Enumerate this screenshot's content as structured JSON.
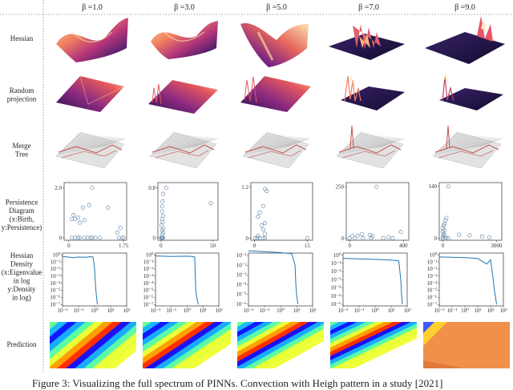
{
  "columns": [
    {
      "beta_label": "β =1.0"
    },
    {
      "beta_label": "β =3.0"
    },
    {
      "beta_label": "β =5.0"
    },
    {
      "beta_label": "β =7.0"
    },
    {
      "beta_label": "β =9.0"
    }
  ],
  "rows": [
    {
      "label": [
        "Hessian"
      ]
    },
    {
      "label": [
        "Random",
        "projection"
      ]
    },
    {
      "label": [
        "Merge",
        "Tree"
      ]
    },
    {
      "label": [
        "Persistence",
        "Diagram",
        "(x:Birth,",
        "y:Persistence)"
      ]
    },
    {
      "label": [
        "Hessian",
        "Density",
        "(x:Eigenvalue",
        "in log",
        "y:Density",
        "in log)"
      ]
    },
    {
      "label": [
        "Prediction"
      ]
    }
  ],
  "colors": {
    "surface_dark": "#1e1447",
    "surface_mid": "#8c2981",
    "surface_light": "#fd9f6c",
    "merge_tree_gray": "#9a9a9a",
    "merge_tree_red": "#c0504d",
    "scatter_marker": "#6b8fb0",
    "density_line": "#1f77b4"
  },
  "chart_data": [
    {
      "type": "scatter",
      "panel": "persistence-diagram",
      "beta": "β =1.0",
      "x_ticks": [
        "0",
        "1.75"
      ],
      "y_ticks": [
        "0",
        "2.0"
      ],
      "xlim": [
        -0.15,
        1.85
      ],
      "ylim": [
        -0.1,
        2.2
      ],
      "points": [
        [
          0.1,
          0
        ],
        [
          0.2,
          0
        ],
        [
          0.3,
          0
        ],
        [
          0.35,
          0
        ],
        [
          0.5,
          0
        ],
        [
          0.6,
          0
        ],
        [
          0.7,
          0
        ],
        [
          0.75,
          0
        ],
        [
          0.85,
          0
        ],
        [
          1.0,
          0
        ],
        [
          1.6,
          0
        ],
        [
          1.7,
          0
        ],
        [
          1.75,
          0
        ],
        [
          0.1,
          0.75
        ],
        [
          0.15,
          0.9
        ],
        [
          0.2,
          0.75
        ],
        [
          0.3,
          0.8
        ],
        [
          0.35,
          0.6
        ],
        [
          0.45,
          1.2
        ],
        [
          0.5,
          0.7
        ],
        [
          0.65,
          1.3
        ],
        [
          0.75,
          2.0
        ],
        [
          1.25,
          1.2
        ],
        [
          1.55,
          0.2
        ],
        [
          1.65,
          0.4
        ]
      ]
    },
    {
      "type": "scatter",
      "panel": "persistence-diagram",
      "beta": "β =3.0",
      "x_ticks": [
        "0",
        "50"
      ],
      "y_ticks": [
        "0",
        "0.8"
      ],
      "xlim": [
        -3,
        55
      ],
      "ylim": [
        -0.04,
        0.88
      ],
      "points": [
        [
          0,
          0
        ],
        [
          0.5,
          0
        ],
        [
          1,
          0
        ],
        [
          1.5,
          0
        ],
        [
          2,
          0
        ],
        [
          1,
          0.05
        ],
        [
          2,
          0.08
        ],
        [
          1,
          0.12
        ],
        [
          2,
          0.15
        ],
        [
          0.5,
          0.2
        ],
        [
          1.5,
          0.25
        ],
        [
          1,
          0.3
        ],
        [
          2,
          0.35
        ],
        [
          1,
          0.42
        ],
        [
          1,
          0.5
        ],
        [
          1.5,
          0.58
        ],
        [
          2,
          0.7
        ],
        [
          5,
          0.8
        ],
        [
          48,
          0.55
        ]
      ]
    },
    {
      "type": "scatter",
      "panel": "persistence-diagram",
      "beta": "β =5.0",
      "x_ticks": [
        "0",
        "15"
      ],
      "y_ticks": [
        "0",
        "1.2"
      ],
      "xlim": [
        -1,
        16.5
      ],
      "ylim": [
        -0.05,
        1.3
      ],
      "points": [
        [
          0.2,
          0
        ],
        [
          0.8,
          0
        ],
        [
          1.5,
          0
        ],
        [
          2.5,
          0
        ],
        [
          3,
          0
        ],
        [
          15,
          0
        ],
        [
          1,
          0.05
        ],
        [
          3,
          0.1
        ],
        [
          2.5,
          0.2
        ],
        [
          2,
          0.3
        ],
        [
          3,
          0.35
        ],
        [
          1,
          0.5
        ],
        [
          1.5,
          0.6
        ],
        [
          2.5,
          0.75
        ],
        [
          3,
          1.15
        ],
        [
          3.5,
          1.1
        ]
      ]
    },
    {
      "type": "scatter",
      "panel": "persistence-diagram",
      "beta": "β =7.0",
      "x_ticks": [
        "0",
        "400"
      ],
      "y_ticks": [
        "0",
        "250"
      ],
      "xlim": [
        -25,
        440
      ],
      "ylim": [
        -10,
        270
      ],
      "points": [
        [
          0,
          0
        ],
        [
          40,
          0
        ],
        [
          100,
          0
        ],
        [
          160,
          0
        ],
        [
          250,
          0
        ],
        [
          320,
          0
        ],
        [
          20,
          10
        ],
        [
          60,
          12
        ],
        [
          90,
          20
        ],
        [
          150,
          15
        ],
        [
          170,
          10
        ],
        [
          200,
          250
        ],
        [
          290,
          5
        ],
        [
          380,
          30
        ]
      ]
    },
    {
      "type": "scatter",
      "panel": "persistence-diagram",
      "beta": "β =9.0",
      "x_ticks": [
        "0",
        "3000"
      ],
      "y_ticks": [
        "0",
        "140"
      ],
      "xlim": [
        -200,
        3300
      ],
      "ylim": [
        -5,
        150
      ],
      "points": [
        [
          0,
          0
        ],
        [
          100,
          0
        ],
        [
          200,
          0
        ],
        [
          300,
          0
        ],
        [
          0,
          5
        ],
        [
          100,
          8
        ],
        [
          50,
          12
        ],
        [
          0,
          18
        ],
        [
          100,
          22
        ],
        [
          0,
          28
        ],
        [
          50,
          35
        ],
        [
          100,
          40
        ],
        [
          150,
          48
        ],
        [
          200,
          55
        ],
        [
          300,
          140
        ],
        [
          900,
          10
        ],
        [
          1500,
          8
        ],
        [
          2200,
          5
        ],
        [
          2600,
          3
        ]
      ]
    },
    {
      "type": "line",
      "panel": "hessian-density",
      "beta": "β =1.0",
      "yscale": "log",
      "xscale": "log",
      "y_ticks": [
        "10⁰",
        "10⁻¹",
        "10⁻²",
        "10⁻³",
        "10⁻⁴",
        "10⁻⁵",
        "10⁻⁶",
        "10⁻⁷"
      ],
      "x_ticks": [
        "10⁻²",
        "10⁻¹",
        "10⁰",
        "10¹",
        "10²"
      ],
      "points": [
        [
          0.01,
          0.6
        ],
        [
          0.05,
          0.4
        ],
        [
          0.1,
          0.5
        ],
        [
          0.3,
          0.45
        ],
        [
          0.5,
          0.55
        ],
        [
          0.8,
          0.5
        ],
        [
          1.0,
          0.01
        ],
        [
          1.2,
          1e-05
        ],
        [
          1.5,
          1e-07
        ]
      ]
    },
    {
      "type": "line",
      "panel": "hessian-density",
      "beta": "β =3.0",
      "yscale": "log",
      "xscale": "log",
      "y_ticks": [
        "10⁰",
        "10⁻¹",
        "10⁻²",
        "10⁻³",
        "10⁻⁴",
        "10⁻⁵",
        "10⁻⁶",
        "10⁻⁷"
      ],
      "x_ticks": [
        "10⁻²",
        "10⁻¹",
        "10⁰",
        "10¹",
        "10²"
      ],
      "points": [
        [
          0.01,
          0.7
        ],
        [
          0.1,
          0.6
        ],
        [
          1,
          0.65
        ],
        [
          2,
          0.6
        ],
        [
          3,
          0.5
        ],
        [
          3.5,
          1e-05
        ],
        [
          4,
          1e-06
        ],
        [
          5,
          1e-07
        ]
      ]
    },
    {
      "type": "line",
      "panel": "hessian-density",
      "beta": "β =5.0",
      "yscale": "log",
      "xscale": "log",
      "y_ticks": [
        "10⁻¹",
        "10⁻²",
        "10⁻³",
        "10⁻⁴",
        "10⁻⁵",
        "10⁻⁶"
      ],
      "x_ticks": [
        "10⁻²",
        "10⁻¹",
        "10⁰",
        "10¹",
        "10²"
      ],
      "points": [
        [
          0.01,
          0.3
        ],
        [
          0.1,
          0.25
        ],
        [
          1,
          0.2
        ],
        [
          5,
          0.15
        ],
        [
          8,
          0.01
        ],
        [
          9,
          0.0001
        ],
        [
          10,
          1e-05
        ],
        [
          12,
          1e-06
        ]
      ]
    },
    {
      "type": "line",
      "panel": "hessian-density",
      "beta": "β =7.0",
      "yscale": "log",
      "xscale": "log",
      "y_ticks": [
        "10⁰",
        "10⁻¹",
        "10⁻²",
        "10⁻³",
        "10⁻⁴",
        "10⁻⁵",
        "10⁻⁶"
      ],
      "x_ticks": [
        "10⁻²",
        "10⁻¹",
        "10⁰",
        "10¹",
        "10²"
      ],
      "points": [
        [
          0.01,
          0.4
        ],
        [
          0.1,
          0.35
        ],
        [
          1,
          0.3
        ],
        [
          10,
          0.25
        ],
        [
          30,
          0.2
        ],
        [
          40,
          0.001
        ],
        [
          45,
          1e-05
        ],
        [
          50,
          1e-06
        ]
      ]
    },
    {
      "type": "line",
      "panel": "hessian-density",
      "beta": "β =9.0",
      "yscale": "log",
      "xscale": "log",
      "y_ticks": [
        "10⁰",
        "10⁻¹",
        "10⁻²",
        "10⁻³",
        "10⁻⁴",
        "10⁻⁵",
        "10⁻⁶",
        "10⁻⁷"
      ],
      "x_ticks": [
        "10⁻²",
        "10⁻¹",
        "10⁰",
        "10¹",
        "10²",
        "10³"
      ],
      "points": [
        [
          0.01,
          0.5
        ],
        [
          0.1,
          0.45
        ],
        [
          1,
          0.4
        ],
        [
          10,
          0.3
        ],
        [
          50,
          0.05
        ],
        [
          100,
          0.2
        ],
        [
          150,
          0.001
        ],
        [
          200,
          1e-05
        ],
        [
          300,
          1e-07
        ]
      ]
    }
  ],
  "caption": "Figure 3: Visualizing the full spectrum of PINNs. Convection with Heigh pattern in a study [2021]"
}
